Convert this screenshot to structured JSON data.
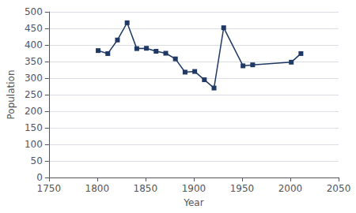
{
  "chart_data": {
    "type": "line",
    "x": [
      1801,
      1811,
      1821,
      1831,
      1841,
      1851,
      1861,
      1871,
      1881,
      1891,
      1901,
      1911,
      1921,
      1931,
      1951,
      1961,
      2001,
      2011
    ],
    "values": [
      383,
      374,
      415,
      467,
      389,
      390,
      381,
      375,
      358,
      318,
      320,
      295,
      270,
      452,
      337,
      340,
      348,
      374
    ],
    "color": "#1F3864",
    "marker": "square",
    "xlabel": "Year",
    "ylabel": "Population",
    "xlim": [
      1750,
      2050
    ],
    "ylim": [
      0,
      500
    ],
    "xticks": [
      1750,
      1800,
      1850,
      1900,
      1950,
      2000,
      2050
    ],
    "yticks": [
      0,
      50,
      100,
      150,
      200,
      250,
      300,
      350,
      400,
      450,
      500
    ],
    "grid": "y"
  }
}
